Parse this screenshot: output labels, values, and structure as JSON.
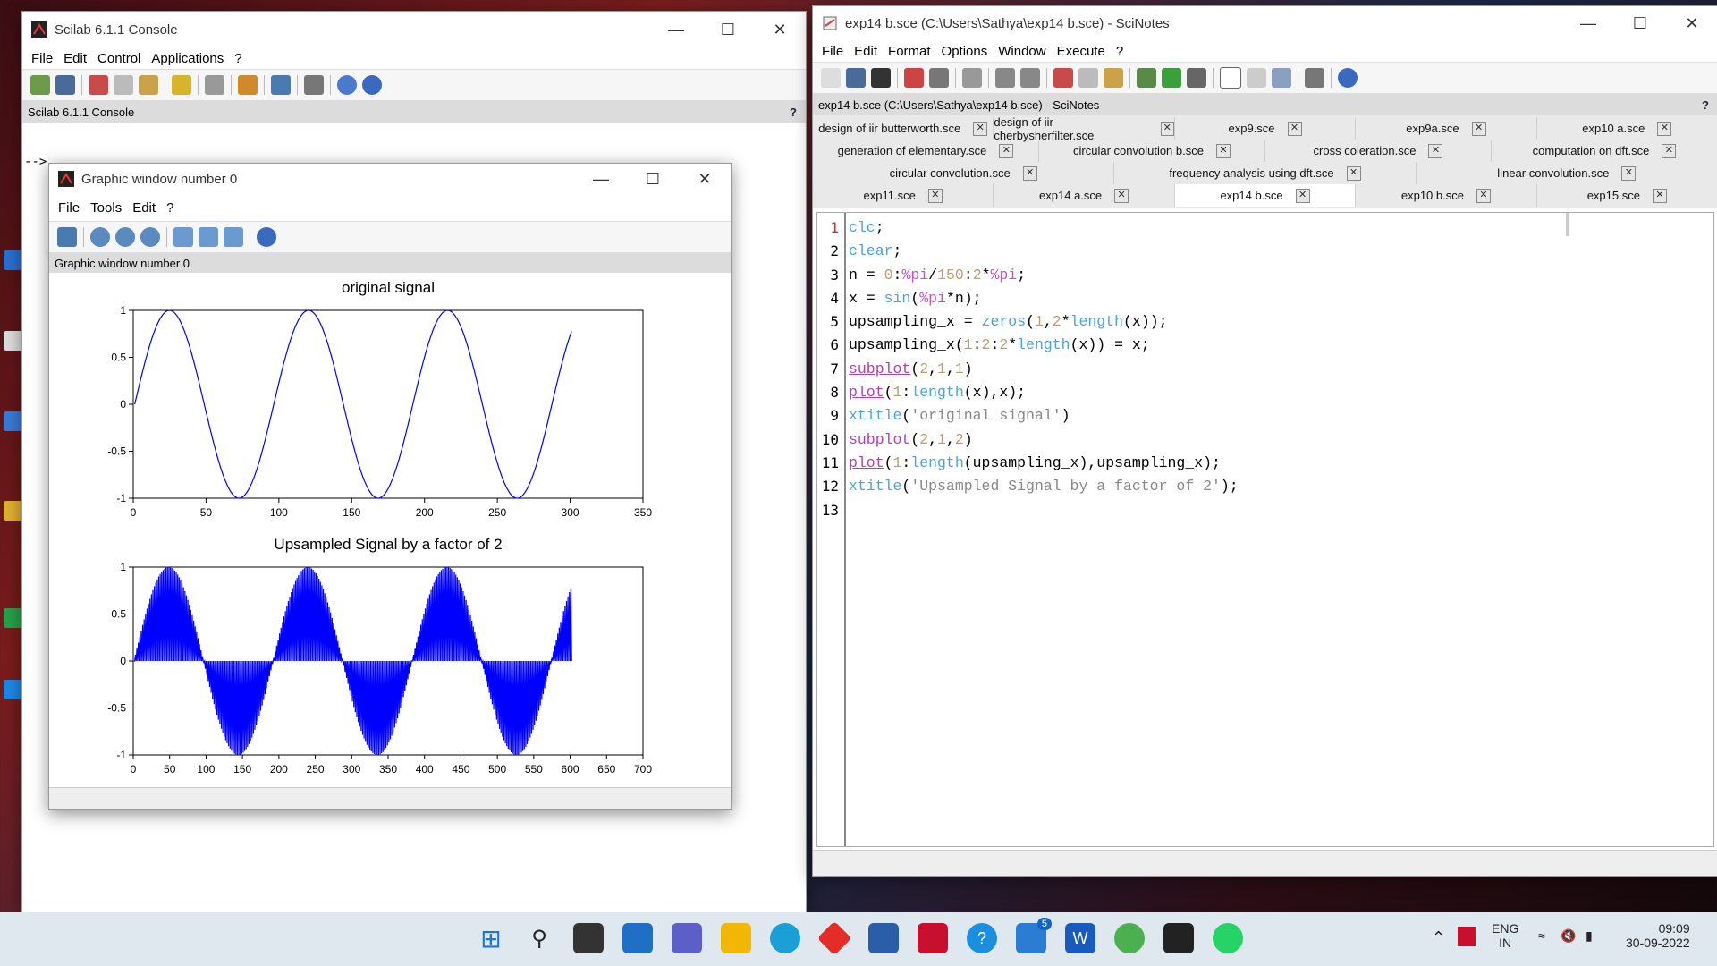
{
  "console": {
    "title": "Scilab 6.1.1 Console",
    "menu": [
      "File",
      "Edit",
      "Control",
      "Applications",
      "?"
    ],
    "info": "Scilab 6.1.1 Console",
    "prompt": "-->"
  },
  "graphic": {
    "title": "Graphic window number 0",
    "menu": [
      "File",
      "Tools",
      "Edit",
      "?"
    ],
    "info": "Graphic window number 0"
  },
  "chart_data": [
    {
      "type": "line",
      "title": "original signal",
      "xlim": [
        0,
        350
      ],
      "ylim": [
        -1,
        1
      ],
      "xticks": [
        "0",
        "50",
        "100",
        "150",
        "200",
        "250",
        "300",
        "350"
      ],
      "yticks": [
        "1",
        "0.5",
        "0",
        "-0.5",
        "-1"
      ],
      "series": [
        {
          "formula": "y = sin(pi*n), n = 0:pi/150:2*pi, plotted vs index 1..301",
          "points": 301,
          "color": "#0000ff"
        }
      ]
    },
    {
      "type": "line",
      "title": "Upsampled Signal by a factor of 2",
      "xlim": [
        0,
        700
      ],
      "ylim": [
        -1,
        1
      ],
      "xticks": [
        "0",
        "50",
        "100",
        "150",
        "200",
        "250",
        "300",
        "350",
        "400",
        "450",
        "500",
        "550",
        "600",
        "650",
        "700"
      ],
      "yticks": [
        "1",
        "0.5",
        "0",
        "-0.5",
        "-1"
      ],
      "series": [
        {
          "formula": "upsampled x with zeros inserted, plotted vs index 1..602",
          "points": 602,
          "color": "#0000ff"
        }
      ]
    }
  ],
  "scinotes": {
    "title": "exp14 b.sce (C:\\Users\\Sathya\\exp14 b.sce) - SciNotes",
    "menu": [
      "File",
      "Edit",
      "Format",
      "Options",
      "Window",
      "Execute",
      "?"
    ],
    "info": "exp14 b.sce (C:\\Users\\Sathya\\exp14 b.sce) - SciNotes",
    "tabs": [
      [
        "design of iir butterworth.sce",
        "design of iir cherbysherfilter.sce",
        "exp9.sce",
        "exp9a.sce",
        "exp10 a.sce"
      ],
      [
        "generation of elementary.sce",
        "circular convolution b.sce",
        "cross coleration.sce",
        "computation on dft.sce"
      ],
      [
        "circular convolution.sce",
        "frequency analysis using dft.sce",
        "linear convolution.sce"
      ],
      [
        "exp11.sce",
        "exp14 a.sce",
        "exp14 b.sce",
        "exp10 b.sce",
        "exp15.sce"
      ]
    ],
    "selected_tab": "exp14 b.sce",
    "line_numbers": [
      "1",
      "2",
      "3",
      "4",
      "5",
      "6",
      "7",
      "8",
      "9",
      "10",
      "11",
      "12",
      "13"
    ],
    "code": [
      "clc;",
      "clear;",
      "n = 0:%pi/150:2*%pi;",
      "x = sin(%pi*n);",
      "upsampling_x = zeros(1,2*length(x));",
      "upsampling_x(1:2:2*length(x)) = x;",
      "subplot(2,1,1)",
      "plot(1:length(x),x);",
      "xtitle('original signal')",
      "subplot(2,1,2)",
      "plot(1:length(upsampling_x),upsampling_x);",
      "xtitle('Upsampled Signal by a factor of 2');",
      ""
    ]
  },
  "taskbar": {
    "lang": "ENG",
    "region": "IN",
    "time": "09:09",
    "date": "30-09-2022",
    "badge": "5"
  }
}
